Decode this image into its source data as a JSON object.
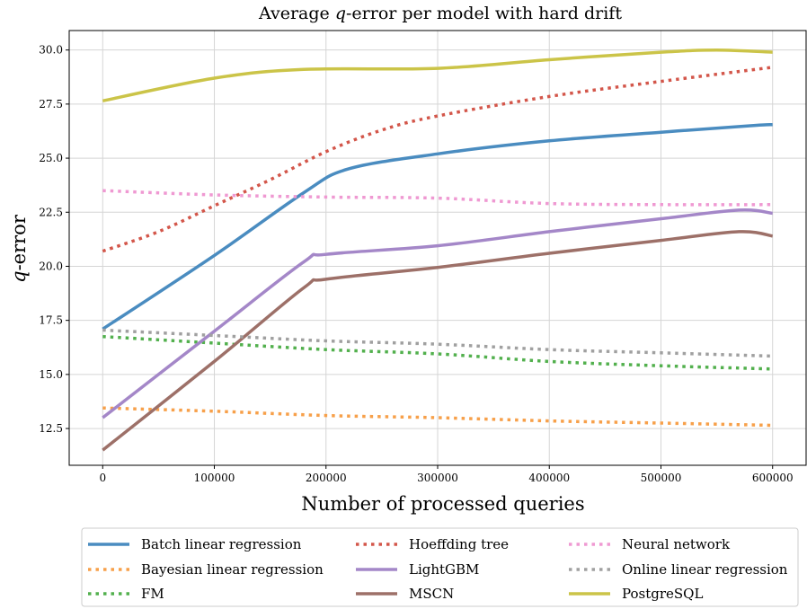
{
  "chart_data": {
    "type": "line",
    "title_prefix": "Average ",
    "title_var": "q",
    "title_suffix": "-error per model with hard drift",
    "xlabel": "Number of processed queries",
    "ylabel_var": "q",
    "ylabel_suffix": "-error",
    "xlim": [
      -30000,
      630000
    ],
    "ylim": [
      10.8,
      30.9
    ],
    "xticks": [
      0,
      100000,
      200000,
      300000,
      400000,
      500000,
      600000
    ],
    "xtick_labels": [
      "0",
      "100000",
      "200000",
      "300000",
      "400000",
      "500000",
      "600000"
    ],
    "yticks": [
      12.5,
      15.0,
      17.5,
      20.0,
      22.5,
      25.0,
      27.5,
      30.0
    ],
    "ytick_labels": [
      "12.5",
      "15.0",
      "17.5",
      "20.0",
      "22.5",
      "25.0",
      "27.5",
      "30.0"
    ],
    "grid": true,
    "legend_placement": "bottom, outside plot, 3 columns",
    "series": [
      {
        "name": "Batch linear regression",
        "color": "#4a8cc0",
        "style": "solid",
        "x": [
          0,
          100000,
          180000,
          220000,
          300000,
          400000,
          500000,
          580000,
          600000
        ],
        "y": [
          17.1,
          20.5,
          23.4,
          24.5,
          25.2,
          25.8,
          26.2,
          26.5,
          26.55
        ]
      },
      {
        "name": "Bayesian linear regression",
        "color": "#f7a04a",
        "style": "dotted",
        "x": [
          0,
          100000,
          200000,
          300000,
          400000,
          500000,
          600000
        ],
        "y": [
          13.45,
          13.3,
          13.1,
          13.0,
          12.85,
          12.75,
          12.65
        ]
      },
      {
        "name": "FM",
        "color": "#52b04d",
        "style": "dotted",
        "x": [
          0,
          100000,
          200000,
          300000,
          400000,
          500000,
          600000
        ],
        "y": [
          16.75,
          16.45,
          16.15,
          15.95,
          15.6,
          15.4,
          15.25
        ]
      },
      {
        "name": "Hoeffding tree",
        "color": "#d3564a",
        "style": "dotted",
        "x": [
          0,
          50000,
          100000,
          150000,
          200000,
          250000,
          300000,
          400000,
          500000,
          600000
        ],
        "y": [
          20.7,
          21.6,
          22.8,
          24.0,
          25.3,
          26.3,
          26.95,
          27.85,
          28.55,
          29.2
        ]
      },
      {
        "name": "LightGBM",
        "color": "#a487c8",
        "style": "solid",
        "x": [
          0,
          100000,
          180000,
          200000,
          300000,
          400000,
          500000,
          570000,
          600000
        ],
        "y": [
          13.0,
          17.0,
          20.2,
          20.55,
          20.95,
          21.6,
          22.2,
          22.6,
          22.45
        ]
      },
      {
        "name": "MSCN",
        "color": "#9d7068",
        "style": "solid",
        "x": [
          0,
          100000,
          180000,
          200000,
          300000,
          400000,
          500000,
          570000,
          600000
        ],
        "y": [
          11.5,
          15.6,
          19.0,
          19.4,
          19.95,
          20.6,
          21.2,
          21.6,
          21.4
        ]
      },
      {
        "name": "Neural network",
        "color": "#ef99d2",
        "style": "dotted",
        "x": [
          0,
          100000,
          200000,
          300000,
          400000,
          500000,
          600000
        ],
        "y": [
          23.5,
          23.3,
          23.2,
          23.15,
          22.9,
          22.85,
          22.85
        ]
      },
      {
        "name": "Online linear regression",
        "color": "#a0a0a0",
        "style": "dotted",
        "x": [
          0,
          100000,
          200000,
          300000,
          400000,
          500000,
          600000
        ],
        "y": [
          17.05,
          16.8,
          16.55,
          16.4,
          16.15,
          16.0,
          15.85
        ]
      },
      {
        "name": "PostgreSQL",
        "color": "#cbc448",
        "style": "solid",
        "x": [
          0,
          100000,
          180000,
          300000,
          400000,
          500000,
          550000,
          600000
        ],
        "y": [
          27.65,
          28.7,
          29.1,
          29.15,
          29.55,
          29.9,
          30.0,
          29.9
        ]
      }
    ]
  }
}
